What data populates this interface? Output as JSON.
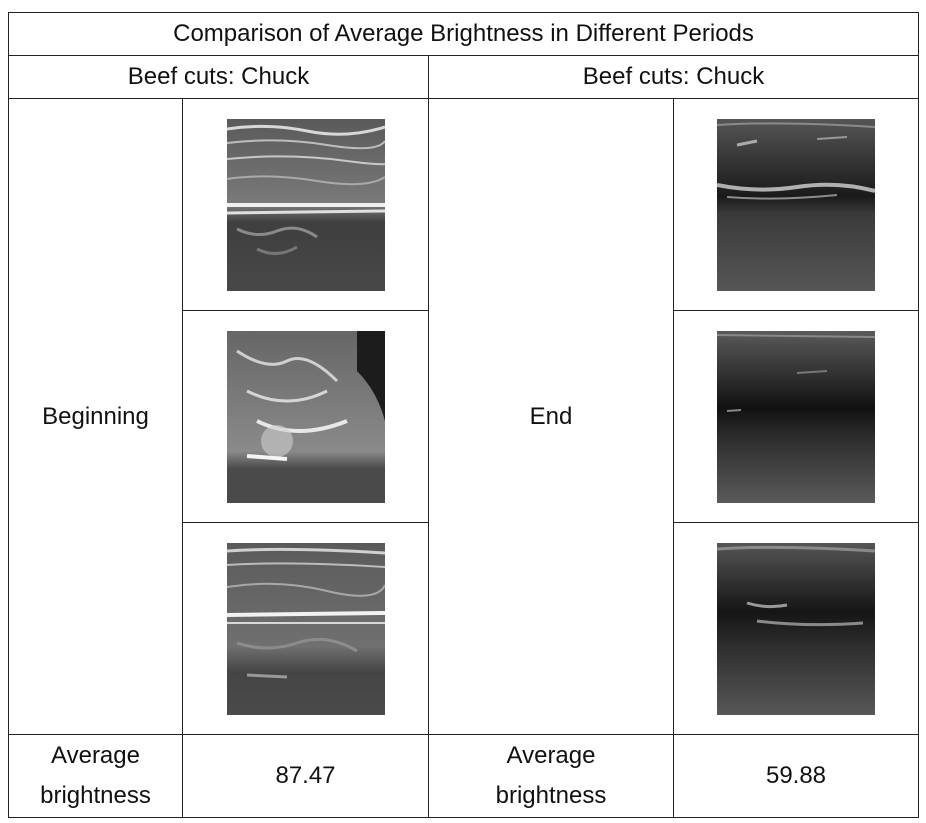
{
  "table": {
    "title": "Comparison of Average Brightness in Different Periods",
    "left": {
      "header": "Beef cuts: Chuck",
      "period_label": "Beginning",
      "avg_label_line1": "Average",
      "avg_label_line2": "brightness",
      "avg_value": "87.47",
      "images": [
        "ultrasound-image",
        "ultrasound-image",
        "ultrasound-image"
      ]
    },
    "right": {
      "header": "Beef cuts: Chuck",
      "period_label": "End",
      "avg_label_line1": "Average",
      "avg_label_line2": "brightness",
      "avg_value": "59.88",
      "images": [
        "ultrasound-image",
        "ultrasound-image",
        "ultrasound-image"
      ]
    }
  }
}
